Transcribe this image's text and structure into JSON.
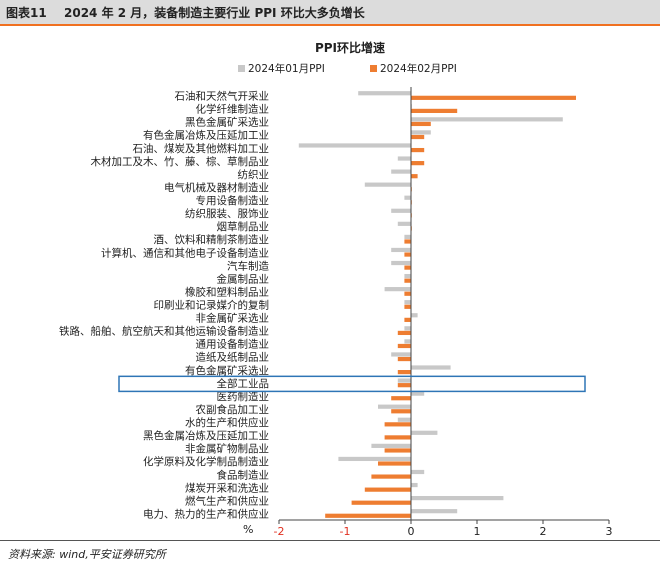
{
  "header": {
    "figure_label": "图表11",
    "title": "2024 年 2 月，装备制造主要行业 PPI 环比大多负增长"
  },
  "source": "资料来源: wind,平安证券研究所",
  "colors": {
    "series1": "#c8c8c8",
    "series2": "#ee7d31",
    "highlight": "#2e75b6",
    "negative_tick": "#e03020"
  },
  "chart_data": {
    "type": "bar",
    "orientation": "horizontal",
    "title": "PPI环比增速",
    "xlabel": "%",
    "xlim": [
      -2,
      3
    ],
    "xticks": [
      "-2",
      "-1",
      "0",
      "1",
      "2",
      "3"
    ],
    "highlight_category": "全部工业品",
    "categories": [
      "石油和天然气开采业",
      "化学纤维制造业",
      "黑色金属矿采选业",
      "有色金属冶炼及压延加工业",
      "石油、煤炭及其他燃料加工业",
      "木材加工及木、竹、藤、棕、草制品业",
      "纺织业",
      "电气机械及器材制造业",
      "专用设备制造业",
      "纺织服装、服饰业",
      "烟草制品业",
      "酒、饮料和精制茶制造业",
      "计算机、通信和其他电子设备制造业",
      "汽车制造",
      "金属制品业",
      "橡胶和塑料制品业",
      "印刷业和记录媒介的复制",
      "非金属矿采选业",
      "铁路、船舶、航空航天和其他运输设备制造业",
      "通用设备制造业",
      "造纸及纸制品业",
      "有色金属矿采选业",
      "全部工业品",
      "医药制造业",
      "农副食品加工业",
      "水的生产和供应业",
      "黑色金属冶炼及压延加工业",
      "非金属矿物制品业",
      "化学原料及化学制品制造业",
      "食品制造业",
      "煤炭开采和洗选业",
      "燃气生产和供应业",
      "电力、热力的生产和供应业"
    ],
    "series": [
      {
        "name": "2024年01月PPI",
        "values": [
          -0.8,
          0.0,
          2.3,
          0.3,
          -1.7,
          -0.2,
          -0.3,
          -0.7,
          -0.1,
          -0.3,
          -0.2,
          -0.1,
          -0.3,
          -0.3,
          -0.1,
          -0.4,
          -0.1,
          0.1,
          -0.1,
          -0.1,
          -0.3,
          0.6,
          -0.2,
          0.2,
          -0.5,
          -0.2,
          0.4,
          -0.6,
          -1.1,
          0.2,
          0.1,
          1.4,
          0.7
        ]
      },
      {
        "name": "2024年02月PPI",
        "values": [
          2.5,
          0.7,
          0.3,
          0.2,
          0.2,
          0.2,
          0.1,
          0.0,
          0.0,
          0.0,
          0.0,
          -0.1,
          -0.1,
          -0.1,
          -0.1,
          -0.1,
          -0.1,
          -0.1,
          -0.2,
          -0.2,
          -0.2,
          -0.2,
          -0.2,
          -0.3,
          -0.3,
          -0.4,
          -0.4,
          -0.4,
          -0.5,
          -0.6,
          -0.7,
          -0.9,
          -1.3
        ]
      }
    ]
  }
}
